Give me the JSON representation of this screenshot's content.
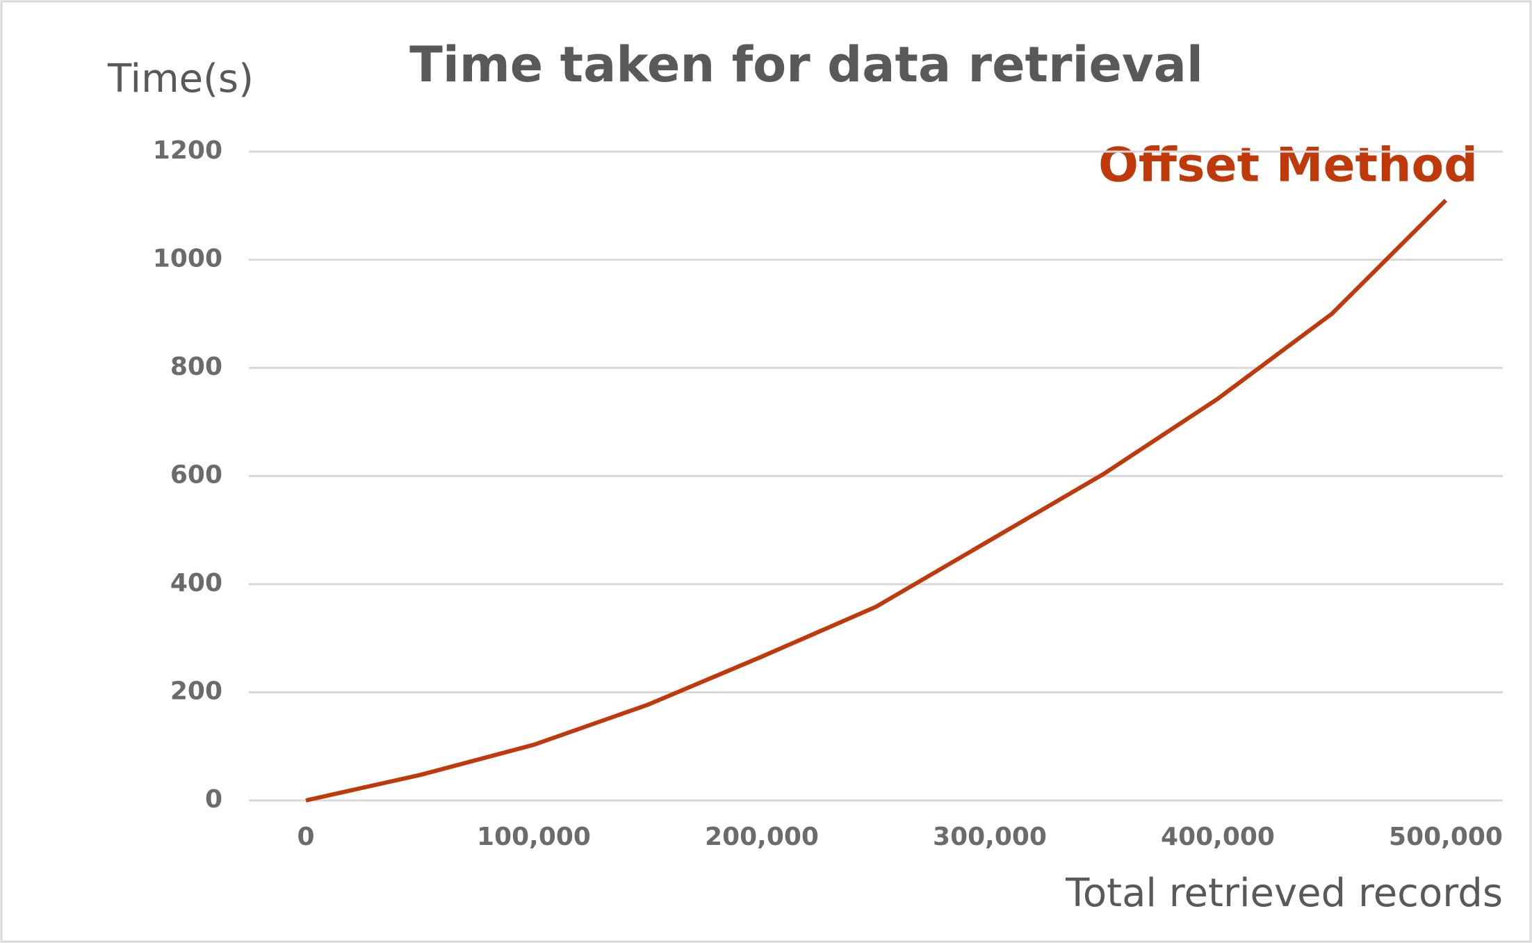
{
  "chart_data": {
    "type": "line",
    "title": "Time taken for data retrieval",
    "y_label": "Time(s)",
    "x_label": "Total retrieved records",
    "x": [
      0,
      50000,
      100000,
      150000,
      200000,
      250000,
      300000,
      350000,
      400000,
      450000,
      500000
    ],
    "series": [
      {
        "name": "Offset Method",
        "color": "#c0390b",
        "values": [
          0,
          47,
          103,
          177,
          266,
          358,
          481,
          604,
          743,
          900,
          1110
        ]
      }
    ],
    "xlim": [
      -25000,
      525000
    ],
    "xticks": [
      0,
      {
        "value": 100000,
        "label": "100,000"
      },
      {
        "value": 200000,
        "label": "200,000"
      },
      {
        "value": 300000,
        "label": "300,000"
      },
      {
        "value": 400000,
        "label": "400,000"
      },
      {
        "value": 500000,
        "label": "500,000"
      }
    ],
    "ylim": [
      0,
      1200
    ],
    "yticks": [
      0,
      200,
      400,
      600,
      800,
      1000,
      1200
    ],
    "grid": true
  }
}
